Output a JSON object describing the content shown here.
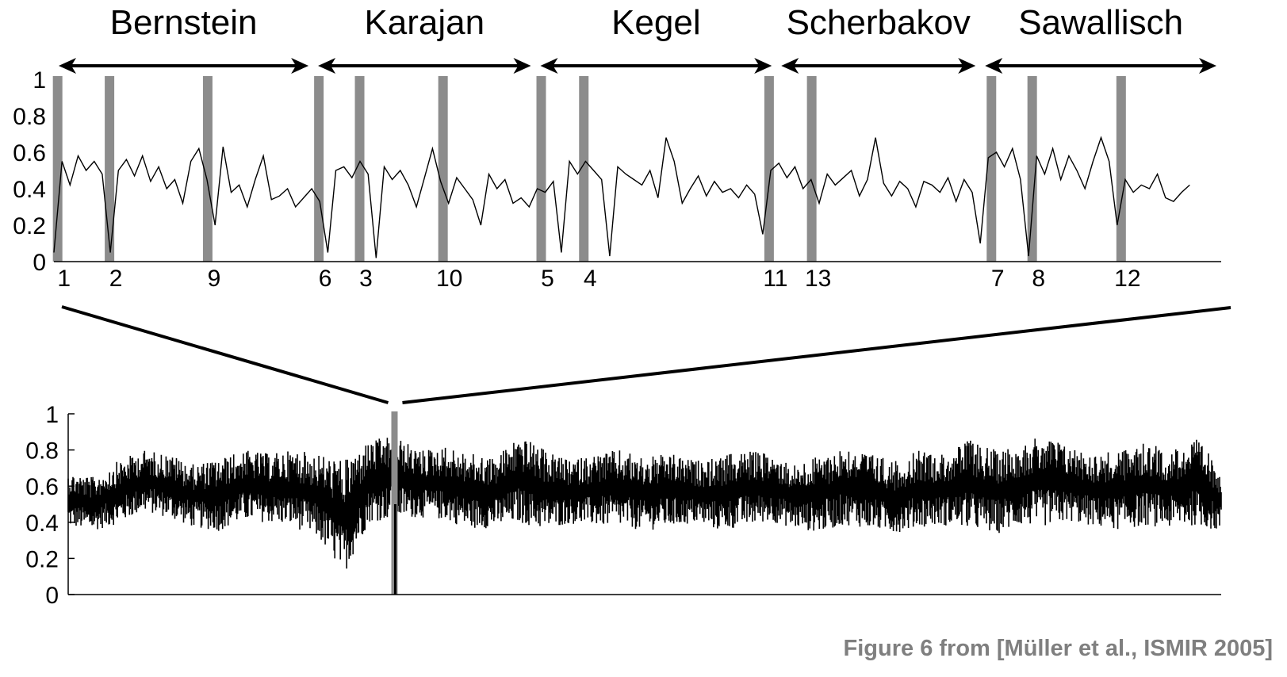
{
  "caption": "Figure 6 from [Müller et al., ISMIR 2005]",
  "colors": {
    "line": "#000000",
    "marker": "#8c8c8c",
    "caption": "#7f7f7f"
  },
  "chart_data": [
    {
      "type": "line",
      "title": "",
      "xlabel": "",
      "ylabel": "",
      "ylim": [
        0,
        1
      ],
      "yticks": [
        "0",
        "0.2",
        "0.4",
        "0.6",
        "0.8",
        "1"
      ],
      "performers": [
        {
          "name": "Bernstein",
          "start": 0,
          "end": 14
        },
        {
          "name": "Karajan",
          "start": 14,
          "end": 26
        },
        {
          "name": "Kegel",
          "start": 26,
          "end": 39
        },
        {
          "name": "Scherbakov",
          "start": 39,
          "end": 50
        },
        {
          "name": "Sawallisch",
          "start": 50,
          "end": 63
        }
      ],
      "markers": [
        {
          "label": "1",
          "x": 0.2
        },
        {
          "label": "2",
          "x": 3.0
        },
        {
          "label": "9",
          "x": 8.3
        },
        {
          "label": "6",
          "x": 14.3
        },
        {
          "label": "3",
          "x": 16.5
        },
        {
          "label": "10",
          "x": 21.0
        },
        {
          "label": "5",
          "x": 26.3
        },
        {
          "label": "4",
          "x": 28.6
        },
        {
          "label": "11",
          "x": 38.6
        },
        {
          "label": "13",
          "x": 40.9
        },
        {
          "label": "7",
          "x": 50.6
        },
        {
          "label": "8",
          "x": 52.8
        },
        {
          "label": "12",
          "x": 57.6
        }
      ],
      "series": [
        {
          "x_range": [
            0,
            63
          ],
          "values": [
            0.05,
            0.55,
            0.42,
            0.58,
            0.5,
            0.55,
            0.48,
            0.05,
            0.5,
            0.56,
            0.47,
            0.58,
            0.44,
            0.52,
            0.4,
            0.45,
            0.32,
            0.55,
            0.62,
            0.45,
            0.2,
            0.63,
            0.38,
            0.42,
            0.3,
            0.45,
            0.58,
            0.34,
            0.36,
            0.4,
            0.3,
            0.35,
            0.4,
            0.33,
            0.05,
            0.5,
            0.52,
            0.46,
            0.55,
            0.48,
            0.02,
            0.52,
            0.45,
            0.5,
            0.42,
            0.3,
            0.46,
            0.62,
            0.44,
            0.32,
            0.46,
            0.4,
            0.34,
            0.2,
            0.48,
            0.4,
            0.45,
            0.32,
            0.35,
            0.3,
            0.4,
            0.38,
            0.44,
            0.05,
            0.55,
            0.48,
            0.55,
            0.5,
            0.45,
            0.03,
            0.52,
            0.48,
            0.45,
            0.42,
            0.5,
            0.35,
            0.68,
            0.55,
            0.32,
            0.4,
            0.47,
            0.36,
            0.44,
            0.38,
            0.4,
            0.35,
            0.42,
            0.37,
            0.15,
            0.5,
            0.54,
            0.46,
            0.52,
            0.4,
            0.45,
            0.32,
            0.48,
            0.42,
            0.46,
            0.5,
            0.36,
            0.45,
            0.68,
            0.43,
            0.36,
            0.44,
            0.4,
            0.3,
            0.44,
            0.42,
            0.38,
            0.46,
            0.33,
            0.45,
            0.38,
            0.1,
            0.57,
            0.6,
            0.52,
            0.62,
            0.45,
            0.03,
            0.58,
            0.48,
            0.62,
            0.45,
            0.58,
            0.5,
            0.4,
            0.55,
            0.68,
            0.55,
            0.2,
            0.45,
            0.38,
            0.42,
            0.4,
            0.48,
            0.35,
            0.33,
            0.38,
            0.42
          ]
        }
      ]
    },
    {
      "type": "line",
      "title": "",
      "xlabel": "",
      "ylabel": "",
      "ylim": [
        0,
        1
      ],
      "yticks": [
        "0",
        "0.2",
        "0.4",
        "0.6",
        "0.8",
        "1"
      ],
      "zoom_marker_x": 0.283,
      "series": [
        {
          "x_range": [
            0,
            1
          ],
          "lower_envelope": [
            0.32,
            0.3,
            0.33,
            0.4,
            0.36,
            0.31,
            0.28,
            0.34,
            0.33,
            0.3,
            0.22,
            0.0,
            0.32,
            0.34,
            0.36,
            0.34,
            0.29,
            0.3,
            0.31,
            0.28,
            0.33,
            0.31,
            0.3,
            0.28,
            0.3,
            0.33,
            0.28,
            0.3,
            0.34,
            0.3,
            0.27,
            0.31,
            0.29,
            0.27,
            0.3,
            0.31,
            0.28,
            0.25,
            0.3,
            0.29,
            0.33,
            0.3,
            0.28,
            0.3,
            0.29,
            0.3,
            0.28
          ],
          "upper_envelope": [
            0.68,
            0.65,
            0.74,
            0.8,
            0.78,
            0.72,
            0.75,
            0.8,
            0.78,
            0.8,
            0.78,
            0.74,
            0.85,
            0.88,
            0.8,
            0.82,
            0.78,
            0.76,
            0.88,
            0.8,
            0.74,
            0.78,
            0.8,
            0.76,
            0.78,
            0.74,
            0.76,
            0.8,
            0.78,
            0.72,
            0.77,
            0.82,
            0.78,
            0.74,
            0.8,
            0.78,
            0.86,
            0.8,
            0.84,
            0.88,
            0.82,
            0.78,
            0.8,
            0.84,
            0.8,
            0.86,
            0.7
          ]
        }
      ]
    }
  ]
}
